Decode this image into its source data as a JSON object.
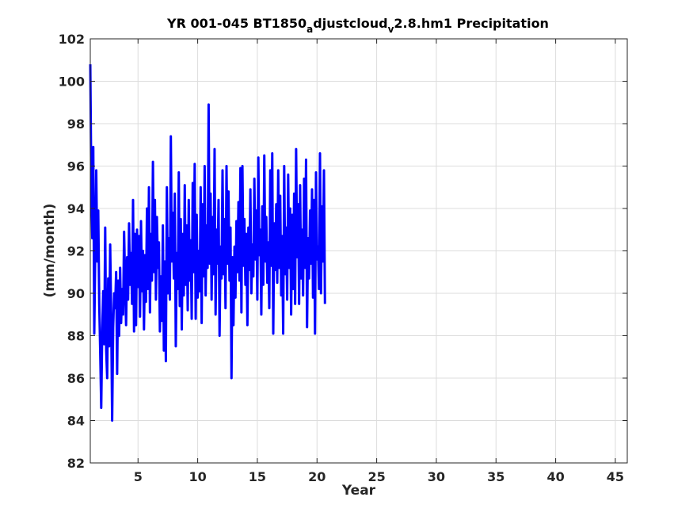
{
  "chart_data": {
    "type": "line",
    "title": {
      "part1": "YR 001-045 BT1850",
      "sub1": "a",
      "part2": "djustcloud",
      "sub2": "v",
      "part3": "2.8.hm1 Precipitation"
    },
    "xlabel": "Year",
    "ylabel": "(mm/month)",
    "xlim": [
      1,
      46
    ],
    "ylim": [
      82,
      102
    ],
    "xticks": [
      5,
      10,
      15,
      20,
      25,
      30,
      35,
      40,
      45
    ],
    "yticks": [
      82,
      84,
      86,
      88,
      90,
      92,
      94,
      96,
      98,
      100,
      102
    ],
    "grid": true,
    "line_color": "#0000ff",
    "series": [
      {
        "x_start": 1,
        "x_step": 0.08333,
        "values": [
          100.8,
          95.2,
          92.6,
          96.9,
          88.1,
          92.0,
          95.8,
          91.5,
          93.9,
          89.5,
          87.2,
          84.6,
          88.3,
          90.1,
          87.6,
          93.1,
          87.3,
          86.0,
          90.7,
          87.5,
          92.3,
          89.0,
          84.0,
          88.4,
          90.0,
          89.3,
          91.0,
          86.2,
          90.6,
          88.0,
          91.2,
          88.6,
          90.2,
          89.0,
          92.9,
          90.5,
          88.5,
          91.7,
          89.7,
          93.3,
          90.4,
          91.9,
          89.5,
          94.4,
          88.2,
          92.8,
          88.5,
          93.0,
          90.3,
          92.7,
          88.9,
          93.4,
          90.1,
          92.0,
          88.3,
          91.8,
          89.6,
          94.0,
          90.2,
          95.0,
          89.1,
          92.8,
          90.6,
          96.2,
          91.0,
          94.4,
          89.7,
          93.6,
          91.2,
          92.4,
          88.2,
          90.8,
          88.7,
          93.2,
          87.3,
          91.5,
          86.8,
          95.0,
          90.0,
          92.6,
          89.7,
          97.4,
          91.5,
          93.8,
          90.7,
          94.7,
          87.5,
          91.9,
          90.2,
          95.7,
          89.4,
          93.5,
          88.3,
          92.8,
          89.9,
          95.1,
          90.4,
          93.2,
          89.2,
          94.4,
          90.6,
          92.5,
          88.8,
          95.2,
          91.0,
          96.1,
          88.8,
          93.7,
          89.8,
          92.0,
          90.1,
          95.0,
          88.6,
          94.2,
          90.8,
          96.0,
          89.9,
          93.2,
          91.2,
          98.9,
          91.4,
          94.7,
          89.7,
          93.6,
          90.9,
          96.8,
          89.0,
          93.0,
          91.4,
          94.4,
          88.0,
          92.2,
          90.7,
          95.8,
          90.9,
          93.5,
          89.3,
          96.0,
          91.4,
          94.8,
          90.6,
          93.1,
          86.0,
          91.7,
          88.5,
          92.2,
          89.8,
          93.4,
          91.0,
          94.3,
          90.6,
          95.9,
          89.1,
          96.0,
          91.3,
          93.5,
          90.4,
          92.8,
          88.5,
          93.1,
          91.1,
          94.9,
          90.0,
          92.3,
          90.8,
          95.4,
          91.6,
          93.9,
          89.7,
          96.4,
          91.8,
          93.0,
          89.0,
          94.1,
          90.4,
          96.5,
          91.5,
          93.6,
          90.5,
          92.4,
          89.3,
          95.8,
          91.3,
          96.6,
          88.1,
          93.3,
          91.1,
          94.2,
          90.5,
          95.8,
          91.2,
          94.6,
          89.9,
          92.7,
          88.1,
          96.0,
          90.9,
          93.1,
          89.7,
          95.6,
          91.2,
          94.0,
          89.0,
          93.7,
          90.2,
          94.7,
          89.5,
          96.8,
          91.7,
          94.2,
          89.5,
          95.1,
          90.7,
          93.0,
          89.9,
          95.4,
          91.2,
          96.3,
          88.4,
          92.6,
          90.7,
          93.9,
          91.4,
          94.9,
          89.8,
          94.4,
          88.1,
          95.7,
          91.6,
          92.2,
          90.2,
          96.6,
          90.0,
          94.1,
          91.5,
          95.8,
          89.5
        ]
      }
    ]
  }
}
